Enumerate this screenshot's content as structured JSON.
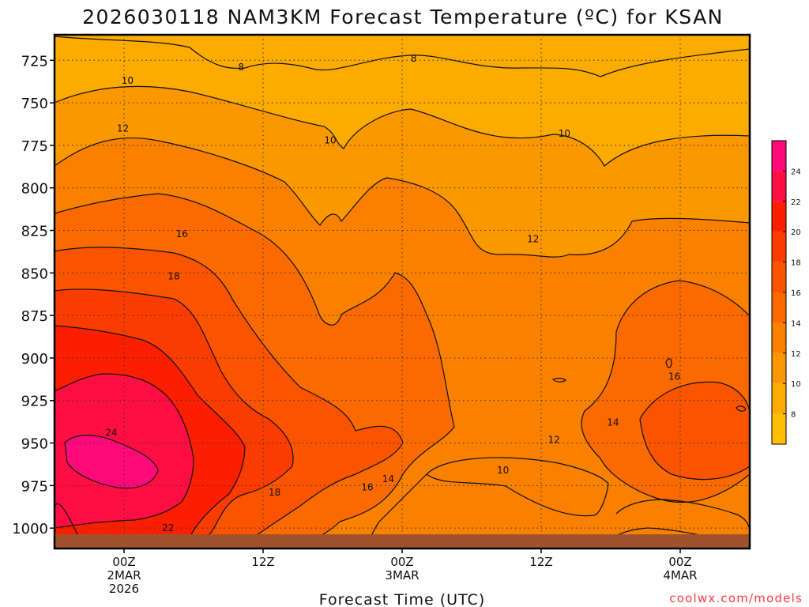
{
  "chart_data": {
    "type": "heatmap",
    "subtype": "time-height filled contour cross-section",
    "title": "2026030118 NAM3KM Forecast Temperature (ºC) for KSAN",
    "xlabel": "Forecast Time (UTC)",
    "ylabel": "",
    "credit": "coolwx.com/models",
    "x_units": "hours since 2026-03-01 18Z",
    "xlim": [
      0,
      60
    ],
    "ylim": [
      1012,
      710
    ],
    "y_ticks": [
      725,
      750,
      775,
      800,
      825,
      850,
      875,
      900,
      925,
      950,
      975,
      1000
    ],
    "x_ticks": [
      {
        "hour": 6,
        "lines": [
          "00Z",
          "2MAR",
          "2026"
        ]
      },
      {
        "hour": 18,
        "lines": [
          "12Z"
        ]
      },
      {
        "hour": 30,
        "lines": [
          "00Z",
          "3MAR"
        ]
      },
      {
        "hour": 42,
        "lines": [
          "12Z"
        ]
      },
      {
        "hour": 54,
        "lines": [
          "00Z",
          "4MAR"
        ]
      }
    ],
    "colorbar": {
      "levels": [
        6,
        8,
        10,
        12,
        14,
        16,
        18,
        20,
        22,
        24,
        26
      ],
      "labels": [
        8,
        10,
        12,
        14,
        16,
        18,
        20,
        22,
        24
      ],
      "colors": [
        "#ffbe00",
        "#fcab00",
        "#fb9800",
        "#fa8000",
        "#fa6a00",
        "#fa5400",
        "#fa3c00",
        "#fc1e00",
        "#ff0e44",
        "#ff0a78"
      ]
    },
    "contour_labels": [
      {
        "value": "8",
        "hour": 16.1,
        "p": 729
      },
      {
        "value": "8",
        "hour": 31.0,
        "p": 724
      },
      {
        "value": "10",
        "hour": 6.3,
        "p": 737
      },
      {
        "value": "10",
        "hour": 23.8,
        "p": 772
      },
      {
        "value": "10",
        "hour": 44.0,
        "p": 768
      },
      {
        "value": "10",
        "hour": 38.7,
        "p": 966
      },
      {
        "value": "12",
        "hour": 5.9,
        "p": 765
      },
      {
        "value": "12",
        "hour": 41.3,
        "p": 830
      },
      {
        "value": "12",
        "hour": 43.1,
        "p": 948
      },
      {
        "value": "14",
        "hour": 28.8,
        "p": 971
      },
      {
        "value": "14",
        "hour": 48.2,
        "p": 938
      },
      {
        "value": "16",
        "hour": 11.0,
        "p": 827
      },
      {
        "value": "16",
        "hour": 27.0,
        "p": 976
      },
      {
        "value": "16",
        "hour": 53.5,
        "p": 911
      },
      {
        "value": "18",
        "hour": 10.3,
        "p": 852
      },
      {
        "value": "18",
        "hour": 19.0,
        "p": 979
      },
      {
        "value": "22",
        "hour": 9.8,
        "p": 1000
      },
      {
        "value": "24",
        "hour": 4.9,
        "p": 944
      }
    ]
  }
}
